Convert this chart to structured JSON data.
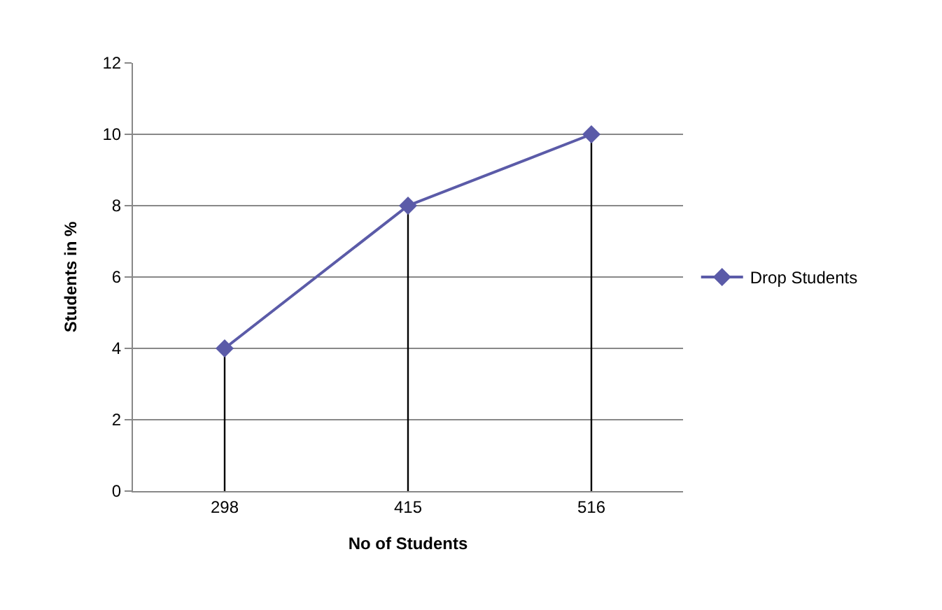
{
  "chart_data": {
    "type": "line",
    "xlabel": "No of Students",
    "ylabel": "Students in %",
    "categories": [
      "298",
      "415",
      "516"
    ],
    "series": [
      {
        "name": "Drop Students",
        "color": "#5b5ba8",
        "values": [
          4,
          8,
          10
        ],
        "errors": [
          [
            0,
            4
          ],
          [
            0,
            8
          ],
          [
            0,
            10
          ]
        ]
      }
    ],
    "ylim": [
      0,
      12
    ],
    "yticks": [
      0,
      2,
      4,
      6,
      8,
      10,
      12
    ],
    "grid": "y",
    "legend": "right",
    "marker": "diamond",
    "line_style": "solid"
  }
}
